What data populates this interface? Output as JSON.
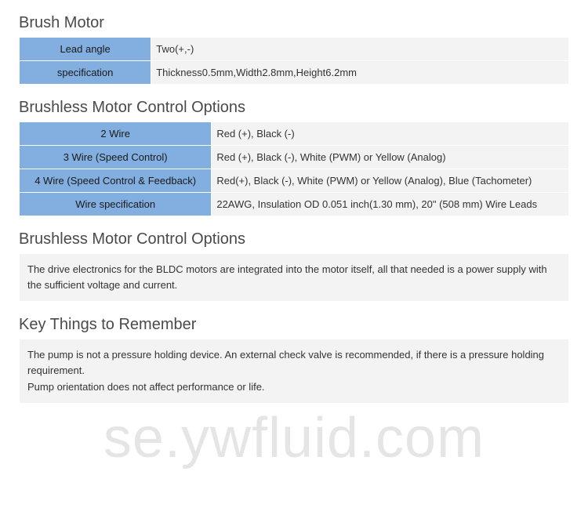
{
  "colors": {
    "header_bg": "#82aee0",
    "value_bg": "#f3f3f3",
    "border": "#ffffff",
    "title_color": "#4a4a4a",
    "text_color": "#333333",
    "watermark_color": "rgba(0,0,0,0.10)"
  },
  "typography": {
    "title_fontsize": 20,
    "title_weight": 300,
    "body_fontsize": 13
  },
  "sections": {
    "brush_motor": {
      "title": "Brush Motor",
      "col_widths": [
        "24%",
        "76%"
      ],
      "rows": [
        {
          "label": "Lead angle",
          "value": "Two(+,-)"
        },
        {
          "label": "specification",
          "value": "Thickness0.5mm,Width2.8mm,Height6.2mm"
        }
      ]
    },
    "control_options": {
      "title": "Brushless Motor Control Options",
      "col_widths": [
        "35%",
        "65%"
      ],
      "rows": [
        {
          "label": "2 Wire",
          "value": "Red (+), Black (-)"
        },
        {
          "label": "3 Wire (Speed Control)",
          "value": "Red (+), Black (-), White (PWM) or Yellow (Analog)"
        },
        {
          "label": "4 Wire (Speed Control & Feedback)",
          "value": "Red(+), Black (-), White (PWM) or Yellow (Analog), Blue (Tachometer)"
        },
        {
          "label": "Wire specification",
          "value": "22AWG, Insulation OD 0.051 inch(1.30 mm), 20\" (508 mm) Wire Leads"
        }
      ]
    },
    "control_note": {
      "title": "Brushless Motor Control Options",
      "text": "The drive electronics for the BLDC motors are integrated into the motor itself, all that needed is a power supply with the sufficient voltage and current."
    },
    "key_things": {
      "title": "Key Things to Remember",
      "line1": "The pump is not a pressure holding device. An external check valve is recommended, if there is a pressure holding requirement.",
      "line2": "Pump orientation does not affect performance or life."
    }
  },
  "watermark": "se.ywfluid.com"
}
